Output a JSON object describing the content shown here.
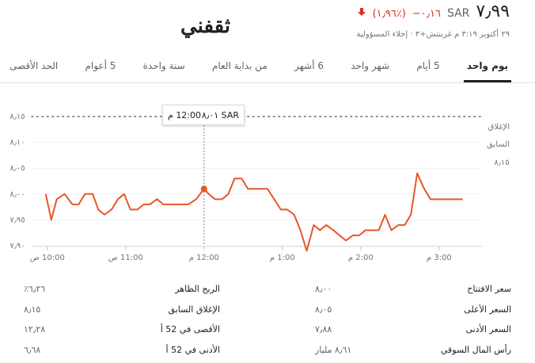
{
  "header": {
    "price": "٧٫٩٩",
    "currency": "SAR",
    "change": "−٠٫١٦",
    "change_percent": "(١٫٩٦٪)",
    "logo": "ثقفني",
    "timestamp": "٢٩ أكتوبر ٣:١٩ م غرينتش+٣",
    "disclaimer": "إخلاء المسؤولية"
  },
  "tabs": [
    "يوم واحد",
    "5 أيام",
    "شهر واحد",
    "6 أشهر",
    "من بداية العام",
    "سنة واحدة",
    "5 أعوام",
    "الحد الأقصى"
  ],
  "selected_tab": 0,
  "chart_data": {
    "type": "line",
    "color": "#e8562a",
    "x": [
      9.98,
      10.05,
      10.12,
      10.22,
      10.32,
      10.4,
      10.48,
      10.58,
      10.65,
      10.73,
      10.82,
      10.9,
      10.98,
      11.06,
      11.15,
      11.23,
      11.31,
      11.4,
      11.48,
      11.8,
      11.9,
      12.0,
      12.06,
      12.14,
      12.23,
      12.31,
      12.39,
      12.48,
      12.56,
      12.81,
      12.98,
      13.06,
      13.15,
      13.23,
      13.31,
      13.4,
      13.48,
      13.56,
      13.65,
      13.81,
      13.9,
      13.98,
      14.06,
      14.23,
      14.31,
      14.39,
      14.48,
      14.56,
      14.64,
      14.72,
      14.81,
      14.89,
      15.3
    ],
    "values": [
      8.0,
      7.95,
      7.99,
      8.0,
      7.98,
      7.98,
      8.0,
      8.0,
      7.97,
      7.96,
      7.97,
      7.99,
      8.0,
      7.97,
      7.97,
      7.98,
      7.98,
      7.99,
      7.98,
      7.98,
      7.99,
      8.01,
      8.0,
      7.99,
      7.99,
      8.0,
      8.03,
      8.03,
      8.01,
      8.01,
      7.97,
      7.97,
      7.96,
      7.93,
      7.89,
      7.94,
      7.93,
      7.94,
      7.93,
      7.91,
      7.92,
      7.92,
      7.93,
      7.93,
      7.96,
      7.93,
      7.94,
      7.94,
      7.96,
      8.04,
      8.01,
      7.99,
      7.99
    ],
    "xlim": [
      9.8,
      15.86
    ],
    "ylim": [
      7.9,
      8.15
    ],
    "xticks": [
      {
        "value": 10,
        "label": "10:00 ص"
      },
      {
        "value": 11,
        "label": "11:00 ص"
      },
      {
        "value": 12,
        "label": "12:00 م"
      },
      {
        "value": 13,
        "label": "1:00 م"
      },
      {
        "value": 14,
        "label": "2:00 م"
      },
      {
        "value": 15,
        "label": "3:00 م"
      }
    ],
    "yticks": [
      {
        "value": 7.9,
        "label": "٧٫٩٠"
      },
      {
        "value": 7.95,
        "label": "٧٫٩٥"
      },
      {
        "value": 8.0,
        "label": "٨٫٠٠"
      },
      {
        "value": 8.05,
        "label": "٨٫٠٥"
      },
      {
        "value": 8.1,
        "label": "٨٫١٠"
      },
      {
        "value": 8.15,
        "label": "٨٫١٥"
      }
    ],
    "grid": true,
    "reference_line": {
      "label": "الإغلاق السابق",
      "value": {
        "value": 8.15,
        "label": "٨٫١٥"
      }
    },
    "tooltip": {
      "x": {
        "value": 12,
        "label": "12:00 م"
      },
      "price": "٨٫٠١ SAR"
    }
  },
  "stats": [
    [
      "سعر الافتتاح",
      "٨٫٠٠"
    ],
    [
      "السعر الأعلى",
      "٨٫٠٥"
    ],
    [
      "السعر الأدنى",
      "٧٫٨٨"
    ],
    [
      "رأس المال السوقي",
      "٨٫٦١ مليار"
    ],
    [
      "الربح الظاهر",
      "٦٫٢٦٪"
    ],
    [
      "الإغلاق السابق",
      "٨٫١٥"
    ],
    [
      "الأقصى في 52 أ",
      "١٢٫٢٨"
    ],
    [
      "الأدنى في 52 أ",
      "٦٫٦٨"
    ]
  ]
}
